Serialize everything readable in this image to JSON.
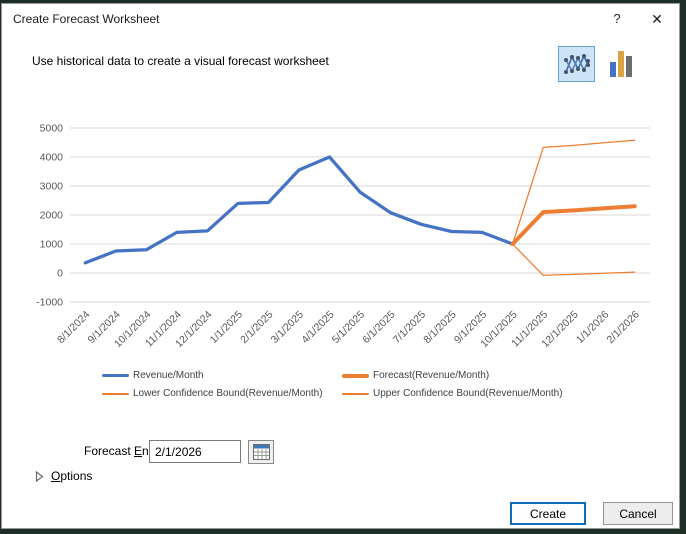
{
  "window": {
    "title": "Create Forecast Worksheet",
    "help_glyph": "?",
    "close_glyph": "✕"
  },
  "subtitle": "Use historical data to create a visual forecast worksheet",
  "chart_type_icons": [
    {
      "name": "line-chart-icon",
      "selected": true
    },
    {
      "name": "column-chart-icon",
      "selected": false
    }
  ],
  "chart_data": {
    "type": "line",
    "title": "",
    "xlabel": "",
    "ylabel": "",
    "ylim": [
      -1000,
      5000
    ],
    "ytick_step": 1000,
    "grid": true,
    "legend_position": "bottom",
    "categories": [
      "8/1/2024",
      "9/1/2024",
      "10/1/2024",
      "11/1/2024",
      "12/1/2024",
      "1/1/2025",
      "2/1/2025",
      "3/1/2025",
      "4/1/2025",
      "5/1/2025",
      "6/1/2025",
      "7/1/2025",
      "8/1/2025",
      "9/1/2025",
      "10/1/2025",
      "11/1/2025",
      "12/1/2025",
      "1/1/2026",
      "2/1/2026"
    ],
    "series": [
      {
        "name": "Revenue/Month",
        "color": "#4472C4",
        "width": 3.25,
        "start_index": 0,
        "values": [
          350,
          760,
          800,
          1400,
          1450,
          2400,
          2430,
          3550,
          4000,
          2790,
          2080,
          1680,
          1430,
          1400,
          1000
        ]
      },
      {
        "name": "Forecast(Revenue/Month)",
        "color": "#ED7D31",
        "width": 4,
        "start_index": 14,
        "values": [
          1000,
          2100,
          2160,
          2230,
          2300
        ]
      },
      {
        "name": "Lower Confidence Bound(Revenue/Month)",
        "color": "#ED7D31",
        "width": 1.25,
        "start_index": 14,
        "values": [
          1000,
          -80,
          -50,
          -10,
          30
        ]
      },
      {
        "name": "Upper Confidence Bound(Revenue/Month)",
        "color": "#ED7D31",
        "width": 1.25,
        "start_index": 14,
        "values": [
          1000,
          4330,
          4400,
          4490,
          4580
        ]
      }
    ]
  },
  "forecast_end": {
    "label_parts": [
      "Forecast ",
      "E",
      "nd"
    ],
    "value": "2/1/2026"
  },
  "options": {
    "label_parts": [
      "",
      "O",
      "ptions"
    ]
  },
  "buttons": {
    "create": "Create",
    "cancel": "Cancel"
  },
  "colors": {
    "accent_blue": "#4472C4",
    "accent_orange": "#ED7D31",
    "gridline": "#D9D9D9",
    "axis_text": "#595959",
    "selected_icon_bg": "#cce4f7",
    "selected_icon_border": "#62a4d8",
    "default_button_border": "#0f6cbd"
  }
}
